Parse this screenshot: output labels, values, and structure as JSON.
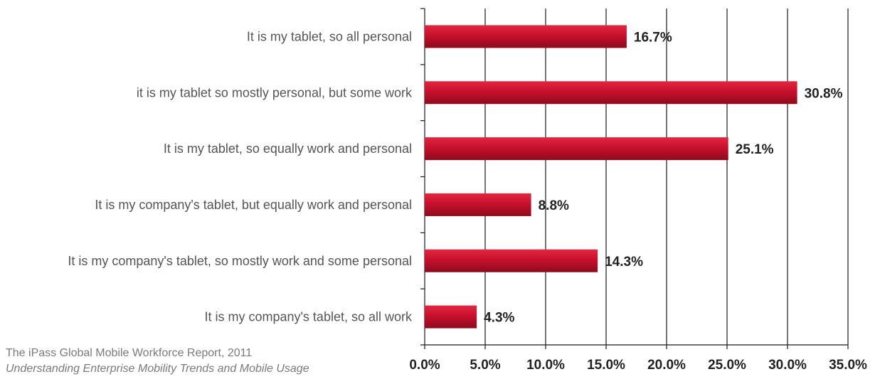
{
  "chart_data": {
    "type": "bar",
    "orientation": "horizontal",
    "categories": [
      "It is my tablet, so all personal",
      "it is my tablet so mostly personal, but some work",
      "It is my tablet, so equally work and personal",
      "It is my company's tablet, but equally work and personal",
      "It is my company's tablet, so mostly work and some personal",
      "It is my company's tablet, so all work"
    ],
    "values": [
      16.7,
      30.8,
      25.1,
      8.8,
      14.3,
      4.3
    ],
    "value_labels": [
      "16.7%",
      "30.8%",
      "25.1%",
      "8.8%",
      "14.3%",
      "4.3%"
    ],
    "x_ticks": [
      0,
      5,
      10,
      15,
      20,
      25,
      30,
      35
    ],
    "x_tick_labels": [
      "0.0%",
      "5.0%",
      "10.0%",
      "15.0%",
      "20.0%",
      "25.0%",
      "30.0%",
      "35.0%"
    ],
    "xlim": [
      0,
      35
    ],
    "grid": "vertical",
    "bar_color": "#c8102e",
    "bar_color_light": "#e2283f",
    "bar_color_dark": "#8e0a1c",
    "title": "",
    "xlabel": "",
    "ylabel": ""
  },
  "source": {
    "line1": "The iPass Global Mobile Workforce Report, 2011",
    "line2": "Understanding Enterprise Mobility Trends and Mobile Usage"
  }
}
